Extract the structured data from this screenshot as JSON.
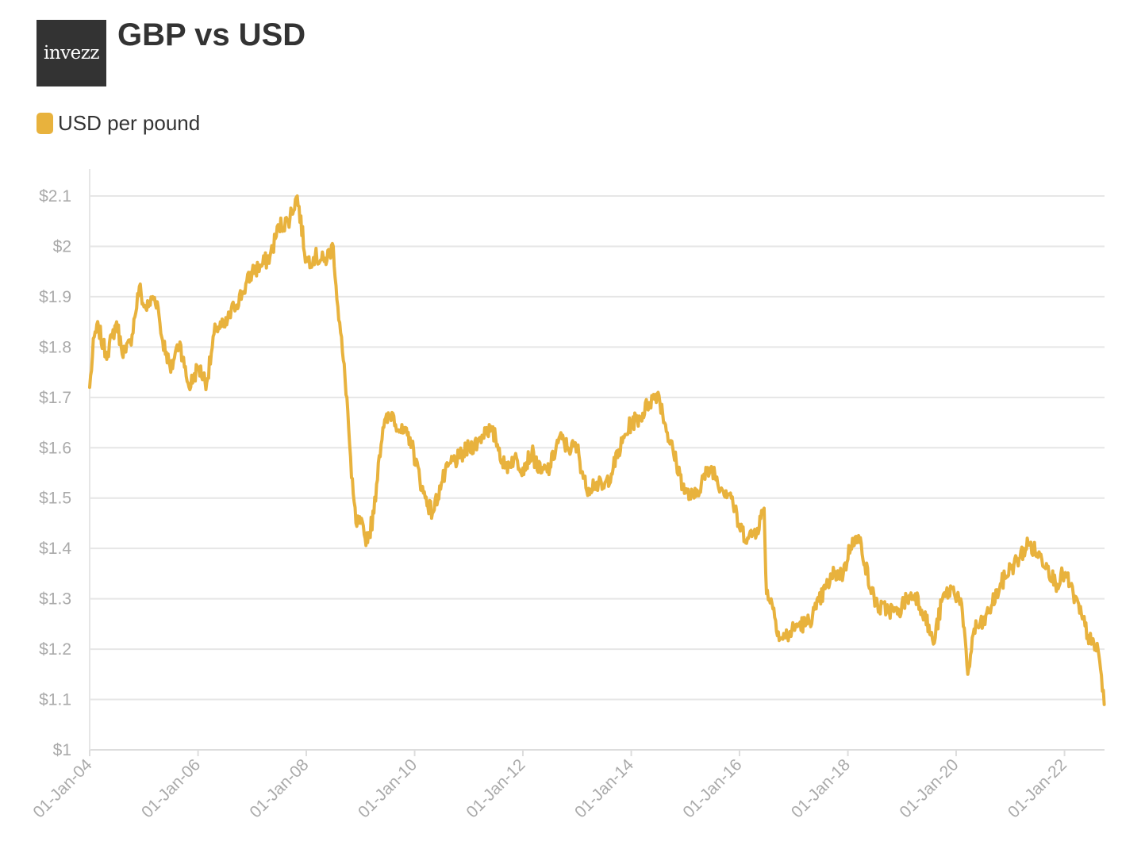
{
  "logo": {
    "text": "invezz"
  },
  "chart_data": {
    "type": "line",
    "title": "GBP vs USD",
    "xlabel": "",
    "ylabel": "",
    "legend": {
      "placement": "top-left",
      "entries": [
        "USD per pound"
      ]
    },
    "grid": true,
    "xlim": [
      "2004-01-01",
      "2022-09-28"
    ],
    "ylim": [
      1,
      2.1
    ],
    "y_ticks": [
      1,
      1.1,
      1.2,
      1.3,
      1.4,
      1.5,
      1.6,
      1.7,
      1.8,
      1.9,
      2,
      2.1
    ],
    "y_tick_labels": [
      "$1",
      "$1.1",
      "$1.2",
      "$1.3",
      "$1.4",
      "$1.5",
      "$1.6",
      "$1.7",
      "$1.8",
      "$1.9",
      "$2",
      "$2.1"
    ],
    "x_ticks": [
      "2004-01-01",
      "2006-01-01",
      "2008-01-01",
      "2010-01-01",
      "2012-01-01",
      "2014-01-01",
      "2016-01-01",
      "2018-01-01",
      "2020-01-01",
      "2022-01-01"
    ],
    "x_tick_labels": [
      "01-Jan-04",
      "01-Jan-06",
      "01-Jan-08",
      "01-Jan-10",
      "01-Jan-12",
      "01-Jan-14",
      "01-Jan-16",
      "01-Jan-18",
      "01-Jan-20",
      "01-Jan-22"
    ],
    "colors": {
      "series": "#e8b23d",
      "grid": "#e6e6e6",
      "axis": "#dddddd",
      "tick_text": "#aaaaaa"
    },
    "series": [
      {
        "name": "USD per pound",
        "x": [
          "2004-01-01",
          "2004-02-01",
          "2004-03-01",
          "2004-04-01",
          "2004-05-01",
          "2004-06-01",
          "2004-07-01",
          "2004-08-01",
          "2004-09-01",
          "2004-10-01",
          "2004-11-01",
          "2004-12-01",
          "2005-01-01",
          "2005-02-01",
          "2005-03-01",
          "2005-04-01",
          "2005-05-01",
          "2005-06-01",
          "2005-07-01",
          "2005-08-01",
          "2005-09-01",
          "2005-10-01",
          "2005-11-01",
          "2005-12-01",
          "2006-01-01",
          "2006-03-01",
          "2006-05-01",
          "2006-07-01",
          "2006-09-01",
          "2006-11-01",
          "2007-01-01",
          "2007-03-01",
          "2007-05-01",
          "2007-07-01",
          "2007-09-01",
          "2007-11-01",
          "2008-01-01",
          "2008-03-01",
          "2008-05-01",
          "2008-07-01",
          "2008-08-01",
          "2008-09-01",
          "2008-10-01",
          "2008-11-01",
          "2008-12-01",
          "2009-01-01",
          "2009-02-01",
          "2009-03-01",
          "2009-04-01",
          "2009-05-01",
          "2009-06-01",
          "2009-08-01",
          "2009-10-01",
          "2009-12-01",
          "2010-03-01",
          "2010-05-01",
          "2010-07-01",
          "2010-09-01",
          "2010-11-01",
          "2011-01-01",
          "2011-03-01",
          "2011-05-01",
          "2011-07-01",
          "2011-09-01",
          "2011-11-01",
          "2012-01-01",
          "2012-03-01",
          "2012-05-01",
          "2012-07-01",
          "2012-09-01",
          "2012-11-01",
          "2013-01-01",
          "2013-03-01",
          "2013-05-01",
          "2013-07-01",
          "2013-09-01",
          "2013-11-01",
          "2014-01-01",
          "2014-03-01",
          "2014-05-01",
          "2014-07-01",
          "2014-09-01",
          "2014-11-01",
          "2015-01-01",
          "2015-03-01",
          "2015-05-01",
          "2015-07-01",
          "2015-09-01",
          "2015-11-01",
          "2016-01-01",
          "2016-03-01",
          "2016-05-01",
          "2016-06-15",
          "2016-07-01",
          "2016-08-01",
          "2016-10-01",
          "2016-12-01",
          "2017-02-01",
          "2017-04-01",
          "2017-06-01",
          "2017-08-01",
          "2017-10-01",
          "2017-12-01",
          "2018-02-01",
          "2018-04-01",
          "2018-06-01",
          "2018-08-01",
          "2018-10-01",
          "2018-12-01",
          "2019-02-01",
          "2019-04-01",
          "2019-06-01",
          "2019-08-01",
          "2019-10-01",
          "2019-12-01",
          "2020-02-01",
          "2020-03-20",
          "2020-05-01",
          "2020-07-01",
          "2020-09-01",
          "2020-11-01",
          "2021-01-01",
          "2021-03-01",
          "2021-05-01",
          "2021-07-01",
          "2021-09-01",
          "2021-11-01",
          "2022-01-01",
          "2022-03-01",
          "2022-05-01",
          "2022-07-01",
          "2022-08-15",
          "2022-09-01",
          "2022-09-26"
        ],
        "y": [
          1.72,
          1.82,
          1.84,
          1.8,
          1.79,
          1.82,
          1.85,
          1.8,
          1.79,
          1.81,
          1.86,
          1.92,
          1.88,
          1.88,
          1.9,
          1.89,
          1.82,
          1.79,
          1.75,
          1.79,
          1.81,
          1.76,
          1.72,
          1.74,
          1.76,
          1.73,
          1.84,
          1.84,
          1.88,
          1.91,
          1.95,
          1.96,
          1.98,
          2.04,
          2.05,
          2.1,
          1.97,
          1.98,
          1.97,
          2.0,
          1.88,
          1.79,
          1.7,
          1.54,
          1.45,
          1.45,
          1.42,
          1.43,
          1.47,
          1.57,
          1.64,
          1.67,
          1.63,
          1.62,
          1.51,
          1.47,
          1.53,
          1.57,
          1.58,
          1.6,
          1.61,
          1.64,
          1.62,
          1.56,
          1.58,
          1.56,
          1.59,
          1.55,
          1.56,
          1.62,
          1.6,
          1.6,
          1.52,
          1.53,
          1.52,
          1.56,
          1.61,
          1.65,
          1.66,
          1.69,
          1.71,
          1.63,
          1.57,
          1.51,
          1.5,
          1.54,
          1.56,
          1.52,
          1.51,
          1.44,
          1.42,
          1.44,
          1.48,
          1.31,
          1.3,
          1.22,
          1.23,
          1.25,
          1.25,
          1.28,
          1.32,
          1.35,
          1.35,
          1.42,
          1.41,
          1.32,
          1.28,
          1.28,
          1.27,
          1.3,
          1.31,
          1.27,
          1.21,
          1.3,
          1.32,
          1.3,
          1.15,
          1.24,
          1.25,
          1.29,
          1.33,
          1.36,
          1.38,
          1.41,
          1.39,
          1.37,
          1.33,
          1.35,
          1.31,
          1.26,
          1.21,
          1.2,
          1.16,
          1.09
        ]
      }
    ]
  }
}
